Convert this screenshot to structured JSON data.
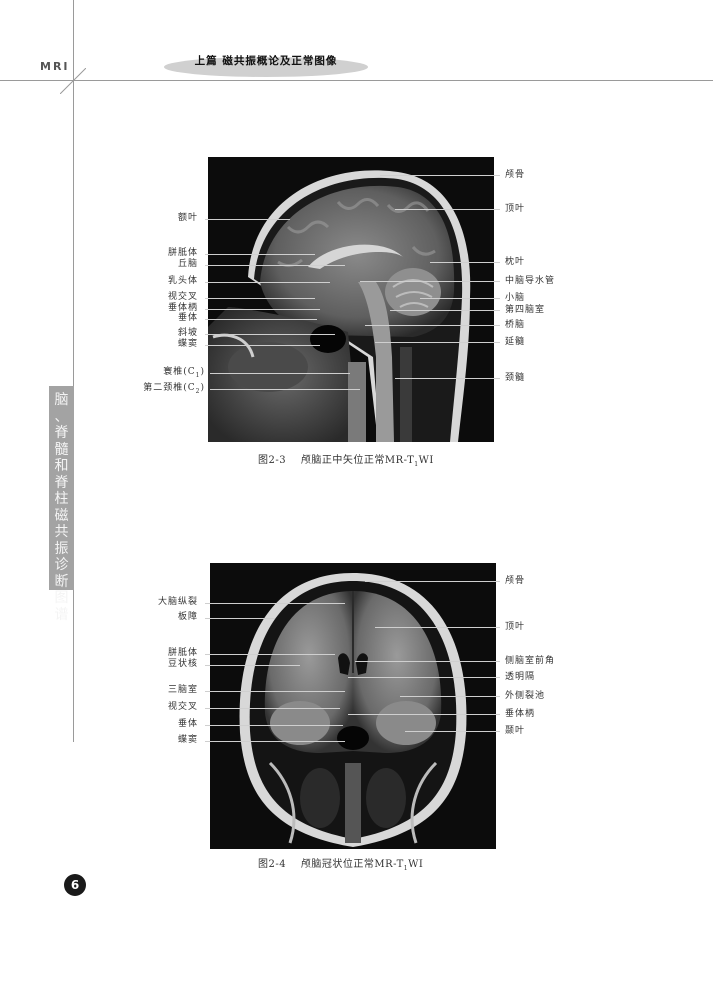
{
  "header": {
    "logo": "MRI",
    "title": "上篇  磁共振概论及正常图像"
  },
  "side_tab": {
    "text": "脑、脊髓和脊柱磁共振诊断图谱"
  },
  "figure1": {
    "caption_prefix": "图2-3",
    "caption_text": "颅脑正中矢位正常MR-T",
    "caption_sub": "1",
    "caption_suffix": "WI",
    "left_labels": [
      "额叶",
      "胼胝体",
      "丘脑",
      "乳头体",
      "视交叉",
      "垂体柄",
      "垂体",
      "斜坡",
      "蝶窦",
      "寰椎(C",
      "第二颈椎(C"
    ],
    "left_label_subs": [
      "",
      "",
      "",
      "",
      "",
      "",
      "",
      "",
      "",
      "1",
      "2"
    ],
    "right_labels": [
      "颅骨",
      "顶叶",
      "枕叶",
      "中脑导水管",
      "小脑",
      "第四脑室",
      "桥脑",
      "延髓",
      "颈髓"
    ]
  },
  "figure2": {
    "caption_prefix": "图2-4",
    "caption_text": "颅脑冠状位正常MR-T",
    "caption_sub": "1",
    "caption_suffix": "WI",
    "left_labels": [
      "大脑纵裂",
      "板障",
      "胼胝体",
      "豆状核",
      "三脑室",
      "视交叉",
      "垂体",
      "蝶窦"
    ],
    "right_labels": [
      "颅骨",
      "顶叶",
      "侧脑室前角",
      "透明隔",
      "外侧裂池",
      "垂体柄",
      "颞叶"
    ]
  },
  "page_number": "6",
  "colors": {
    "rule_line": "#9a9a9a",
    "side_tab": "#a3a3a3",
    "header_oval": "#d0d0d0",
    "scan_background": "#0c0c0c"
  }
}
